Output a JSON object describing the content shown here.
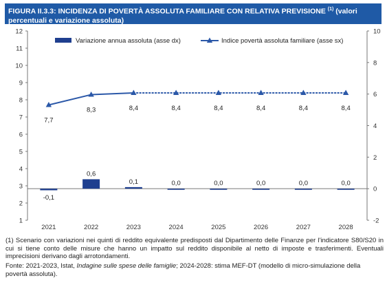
{
  "header": {
    "title": "FIGURA II.3.3: INCIDENZA DI POVERTÀ ASSOLUTA FAMILIARE CON RELATIVA PREVISIONE",
    "footnote_ref": "(1)",
    "title_suffix": "(valori percentuali e variazione assoluta)"
  },
  "notes": {
    "note_1": "(1) Scenario con variazioni nei quinti di reddito equivalente predisposti dal Dipartimento delle Finanze per l'indicatore S80/S20 in cui si tiene conto delle misure che hanno un impatto sul reddito disponibile al netto di imposte e trasferimenti. Eventuali imprecisioni derivano dagli arrotondamenti.",
    "source_prefix": "Fonte: 2021-2023, Istat, ",
    "source_italic": "Indagine sulle spese delle famiglie",
    "source_suffix": "; 2024-2028: stima MEF-DT (modello di micro-simulazione della povertà assoluta)."
  },
  "chart_data": {
    "type": "bar+line",
    "categories": [
      "2021",
      "2022",
      "2023",
      "2024",
      "2025",
      "2026",
      "2027",
      "2028"
    ],
    "series": [
      {
        "name": "Variazione annua assoluta (asse dx)",
        "type": "bar",
        "axis": "right",
        "values": [
          -0.1,
          0.6,
          0.1,
          0.0,
          0.0,
          0.0,
          0.0,
          0.0
        ],
        "labels": [
          "-0,1",
          "0,6",
          "0,1",
          "0,0",
          "0,0",
          "0,0",
          "0,0",
          "0,0"
        ],
        "color": "#1f3f8f"
      },
      {
        "name": "Indice povertà assoluta familiare (asse sx)",
        "type": "line",
        "axis": "left",
        "values": [
          7.7,
          8.3,
          8.4,
          8.4,
          8.4,
          8.4,
          8.4,
          8.4
        ],
        "labels": [
          "7,7",
          "8,3",
          "8,4",
          "8,4",
          "8,4",
          "8,4",
          "8,4",
          "8,4"
        ],
        "solid_until_index": 2,
        "dotted_from_index": 2,
        "color": "#2b58a8"
      }
    ],
    "y_left": {
      "min": 1,
      "max": 12,
      "ticks": [
        1,
        2,
        3,
        4,
        5,
        6,
        7,
        8,
        9,
        10,
        11,
        12
      ]
    },
    "y_right": {
      "min": -2,
      "max": 10,
      "ticks": [
        -2,
        0,
        2,
        4,
        6,
        8,
        10
      ]
    },
    "grid": false,
    "legend_position": "top"
  }
}
